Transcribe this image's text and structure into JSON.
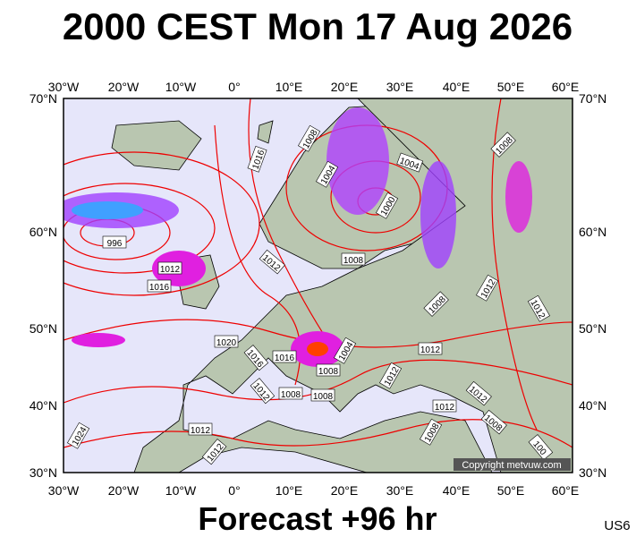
{
  "header": {
    "title": "2000 CEST Mon 17 Aug 2026"
  },
  "map": {
    "lon_labels": [
      "30°W",
      "20°W",
      "10°W",
      "0°",
      "10°E",
      "20°E",
      "30°E",
      "40°E",
      "50°E",
      "60°E"
    ],
    "lat_labels": [
      "70°N",
      "60°N",
      "50°N",
      "40°N",
      "30°N"
    ],
    "isobar_labels": [
      "1016",
      "1008",
      "1004",
      "1008",
      "1004",
      "1000",
      "996",
      "1012",
      "1016",
      "1012",
      "1008",
      "1008",
      "1012",
      "1012",
      "1020",
      "1016",
      "1016",
      "1004",
      "1008",
      "1012",
      "1012",
      "1012",
      "1008",
      "1008",
      "1012",
      "1012",
      "1008",
      "1024",
      "1012",
      "1012",
      "1008",
      "100"
    ],
    "copyright": "Copyright metvuw.com"
  },
  "footer": {
    "forecast": "Forecast +96 hr",
    "code": "US6"
  }
}
